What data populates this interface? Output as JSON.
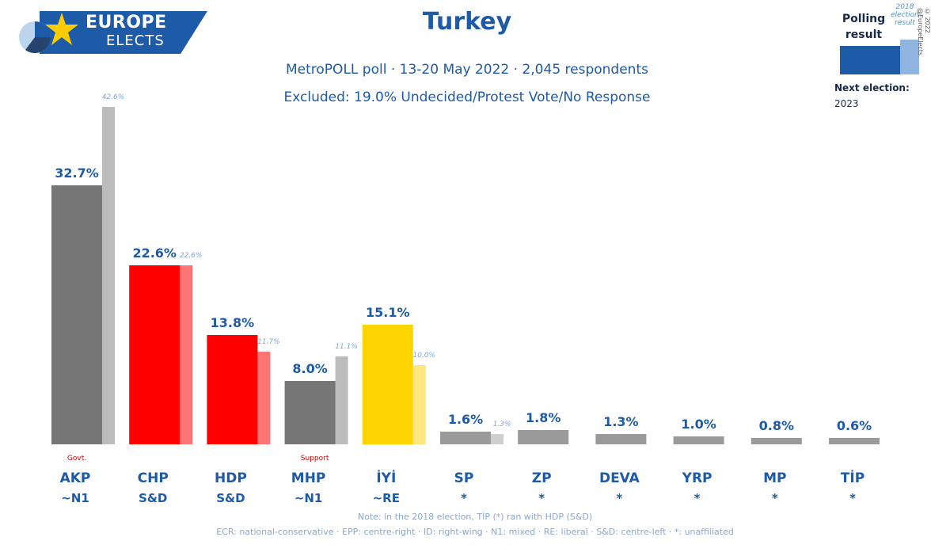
{
  "logo": {
    "line1": "EUROPE",
    "line2": "ELECTS"
  },
  "header": {
    "title": "Turkey",
    "subtitle": "MetroPOLL poll · 13-20 May 2022 · 2,045 respondents",
    "excluded": "Excluded: 19.0% Undecided/Protest Vote/No Response"
  },
  "legend": {
    "polling_label": "Polling result",
    "previous_label": "2018 election result",
    "next_election_label": "Next election:",
    "next_election_year": "2023",
    "copyright": "© 2022 @EuropeElects"
  },
  "colors": {
    "brand_blue": "#1d5aa8",
    "legend_light": "#8fb5e0"
  },
  "chart_data": {
    "type": "bar",
    "categories": [
      "AKP",
      "CHP",
      "HDP",
      "MHP",
      "İYİ",
      "SP",
      "ZP",
      "DEVA",
      "YRP",
      "MP",
      "TİP"
    ],
    "groups": [
      "~N1",
      "S&D",
      "S&D",
      "~N1",
      "~RE",
      "*",
      "*",
      "*",
      "*",
      "*",
      "*"
    ],
    "role_labels": [
      "Govt.",
      "",
      "",
      "Support",
      "",
      "",
      "",
      "",
      "",
      "",
      ""
    ],
    "series": [
      {
        "name": "Polling result",
        "values": [
          32.7,
          22.6,
          13.8,
          8.0,
          15.1,
          1.6,
          1.8,
          1.3,
          1.0,
          0.8,
          0.6
        ],
        "value_labels": [
          "32.7%",
          "22.6%",
          "13.8%",
          "8.0%",
          "15.1%",
          "1.6%",
          "1.8%",
          "1.3%",
          "1.0%",
          "0.8%",
          "0.6%"
        ],
        "colors": [
          "#767676",
          "#ff0000",
          "#ff0000",
          "#767676",
          "#ffd500",
          "#9a9a9a",
          "#9a9a9a",
          "#9a9a9a",
          "#9a9a9a",
          "#9a9a9a",
          "#9a9a9a"
        ]
      },
      {
        "name": "2018 election result",
        "values": [
          42.6,
          22.6,
          11.7,
          11.1,
          10.0,
          1.3,
          null,
          null,
          null,
          null,
          null
        ],
        "value_labels": [
          "42.6%",
          "22.6%",
          "11.7%",
          "11.1%",
          "10.0%",
          "1.3%",
          "",
          "",
          "",
          "",
          ""
        ],
        "colors": [
          "#bcbcbc",
          "#ff7575",
          "#ff7575",
          "#bcbcbc",
          "#ffe680",
          "#cfcfcf",
          "#cfcfcf",
          "#cfcfcf",
          "#cfcfcf",
          "#cfcfcf",
          "#cfcfcf"
        ]
      }
    ],
    "ylim": [
      0,
      45
    ]
  },
  "footnotes": {
    "line1": "Note: in the 2018 election, TİP (*) ran with HDP (S&D)",
    "line2": "ECR: national-conservative · EPP: centre-right · ID: right-wing · N1: mixed · RE: liberal · S&D: centre-left · *: unaffiliated"
  }
}
